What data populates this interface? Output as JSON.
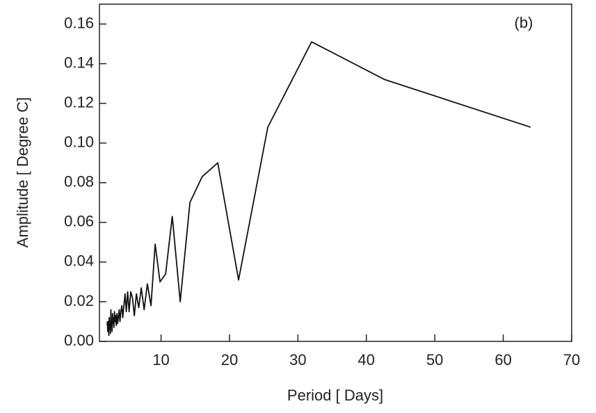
{
  "chart_data": {
    "type": "line",
    "annotation": "(b)",
    "xlabel": "Period [ Days]",
    "ylabel": "Amplitude [ Degree C]",
    "xlim": [
      1,
      70
    ],
    "ylim": [
      0,
      0.17
    ],
    "xticks": [
      10,
      20,
      30,
      40,
      50,
      60,
      70
    ],
    "yticks": [
      {
        "value": 0,
        "label": "0.00"
      },
      {
        "value": 0.02,
        "label": "0.02"
      },
      {
        "value": 0.04,
        "label": "0.04"
      },
      {
        "value": 0.06,
        "label": "0.06"
      },
      {
        "value": 0.08,
        "label": "0.08"
      },
      {
        "value": 0.1,
        "label": "0.10"
      },
      {
        "value": 0.12,
        "label": "0.12"
      },
      {
        "value": 0.14,
        "label": "0.14"
      },
      {
        "value": 0.16,
        "label": "0.16"
      }
    ],
    "series": [
      {
        "color": "#111111",
        "x": [
          2.13,
          2.17,
          2.21,
          2.25,
          2.29,
          2.33,
          2.37,
          2.42,
          2.46,
          2.51,
          2.56,
          2.61,
          2.67,
          2.72,
          2.78,
          2.84,
          2.91,
          2.98,
          3.05,
          3.12,
          3.2,
          3.28,
          3.37,
          3.46,
          3.56,
          3.66,
          3.76,
          3.88,
          4.0,
          4.13,
          4.27,
          4.41,
          4.57,
          4.74,
          4.92,
          5.12,
          5.33,
          5.57,
          5.82,
          6.1,
          6.4,
          6.74,
          7.11,
          7.53,
          8.0,
          8.53,
          9.14,
          9.85,
          10.67,
          11.64,
          12.8,
          14.22,
          16.0,
          18.29,
          21.33,
          25.6,
          32.0,
          42.67,
          64.0
        ],
        "values": [
          0.008,
          0.01,
          0.005,
          0.009,
          0.007,
          0.01,
          0.003,
          0.012,
          0.006,
          0.009,
          0.01,
          0.004,
          0.016,
          0.008,
          0.011,
          0.005,
          0.014,
          0.009,
          0.012,
          0.007,
          0.015,
          0.01,
          0.013,
          0.008,
          0.014,
          0.009,
          0.012,
          0.016,
          0.01,
          0.015,
          0.018,
          0.012,
          0.018,
          0.024,
          0.015,
          0.025,
          0.015,
          0.025,
          0.022,
          0.013,
          0.024,
          0.017,
          0.027,
          0.016,
          0.029,
          0.018,
          0.049,
          0.03,
          0.034,
          0.063,
          0.02,
          0.07,
          0.083,
          0.09,
          0.031,
          0.108,
          0.151,
          0.132,
          0.108
        ]
      }
    ]
  }
}
